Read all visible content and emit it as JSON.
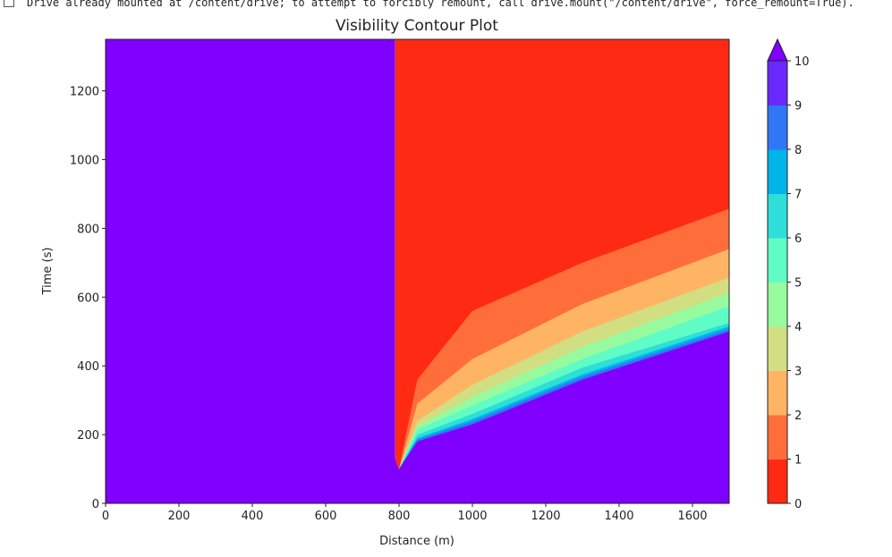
{
  "output_text": "Drive already mounted at /content/drive; to attempt to forcibly remount, call drive.mount(\"/content/drive\", force_remount=True).",
  "chart_data": {
    "type": "contour",
    "title": "Visibility Contour Plot",
    "xlabel": "Distance (m)",
    "ylabel": "Time (s)",
    "xlim": [
      0,
      1700
    ],
    "ylim": [
      0,
      1350
    ],
    "xticks": [
      "0",
      "200",
      "400",
      "600",
      "800",
      "1000",
      "1200",
      "1400",
      "1600"
    ],
    "yticks": [
      "0",
      "200",
      "400",
      "600",
      "800",
      "1000",
      "1200"
    ],
    "colorbar": {
      "levels": [
        0,
        1,
        2,
        3,
        4,
        5,
        6,
        7,
        8,
        9,
        10
      ],
      "tick_labels": [
        "0",
        "1",
        "2",
        "3",
        "4",
        "5",
        "6",
        "7",
        "8",
        "9",
        "10"
      ],
      "extend": "max",
      "colormap": "rainbow",
      "colors": [
        "#ff2a14",
        "#ff6e3a",
        "#ffb464",
        "#d2de82",
        "#98fa9e",
        "#60fcc6",
        "#2ddfd8",
        "#00b4ea",
        "#3077f6",
        "#6a28ff"
      ],
      "over_color": "#7f00ff"
    },
    "front_start_distance": 790,
    "boundary_x": [
      800,
      850,
      1000,
      1300,
      1700
    ],
    "level_boundaries_time": [
      {
        "level": 1,
        "t": [
          100,
          360,
          560,
          700,
          857
        ]
      },
      {
        "level": 2,
        "t": [
          100,
          290,
          420,
          580,
          740
        ]
      },
      {
        "level": 3,
        "t": [
          100,
          240,
          345,
          500,
          657
        ]
      },
      {
        "level": 4,
        "t": [
          100,
          225,
          310,
          455,
          613
        ]
      },
      {
        "level": 5,
        "t": [
          100,
          215,
          285,
          420,
          574
        ]
      },
      {
        "level": 6,
        "t": [
          100,
          200,
          260,
          395,
          525
        ]
      },
      {
        "level": 7,
        "t": [
          100,
          190,
          245,
          375,
          515
        ]
      },
      {
        "level": 8,
        "t": [
          100,
          185,
          238,
          368,
          507
        ]
      },
      {
        "level": 9,
        "t": [
          100,
          180,
          230,
          360,
          500
        ]
      }
    ]
  }
}
